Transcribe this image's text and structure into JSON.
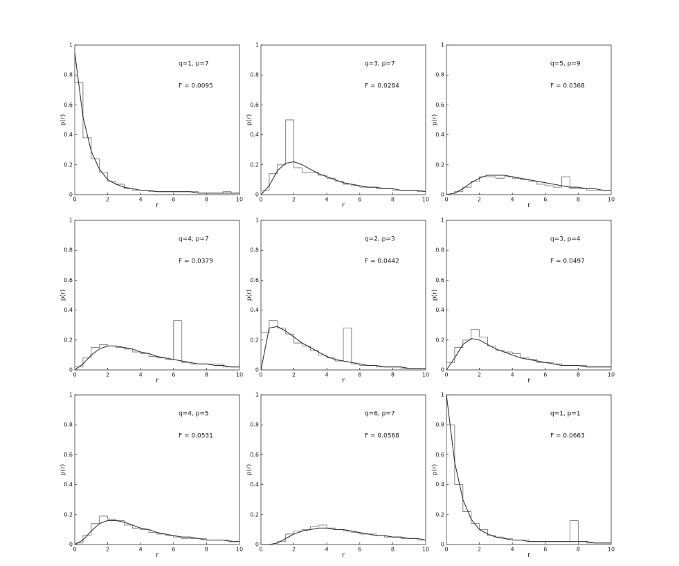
{
  "chart_data": [
    {
      "type": "histogram",
      "annotations": [
        "q=1, p=7",
        "F = 0.0095"
      ],
      "x_label": "r",
      "y_label": "p(r)",
      "xlim": [
        0,
        10
      ],
      "ylim": [
        0,
        1
      ],
      "xticks": [
        0,
        2,
        4,
        6,
        8,
        10
      ],
      "yticks": [
        0,
        0.2,
        0.4,
        0.6,
        0.8,
        1
      ],
      "bins": [
        0,
        0.5,
        1,
        1.5,
        2,
        2.5,
        3,
        3.5,
        4,
        4.5,
        5,
        5.5,
        6,
        6.5,
        7,
        7.5,
        8,
        8.5,
        9,
        9.5,
        10
      ],
      "values": [
        0.75,
        0.38,
        0.24,
        0.15,
        0.09,
        0.07,
        0.04,
        0.03,
        0.03,
        0.02,
        0.02,
        0.02,
        0.02,
        0.02,
        0.02,
        0.01,
        0.01,
        0.01,
        0.02,
        0.01
      ],
      "fit_x": [
        0,
        0.5,
        1,
        1.5,
        2,
        2.5,
        3,
        3.5,
        4,
        4.5,
        5,
        5.5,
        6,
        6.5,
        7,
        7.5,
        8,
        8.5,
        9,
        9.5,
        10
      ],
      "fit_values": [
        0.95,
        0.52,
        0.29,
        0.17,
        0.1,
        0.07,
        0.05,
        0.04,
        0.03,
        0.03,
        0.02,
        0.02,
        0.02,
        0.02,
        0.02,
        0.01,
        0.01,
        0.01,
        0.01,
        0.01,
        0.01
      ]
    },
    {
      "type": "histogram",
      "annotations": [
        "q=3, p=7",
        "F = 0.0284"
      ],
      "x_label": "r",
      "y_label": "p(r)",
      "xlim": [
        0,
        10
      ],
      "ylim": [
        0,
        1
      ],
      "xticks": [
        0,
        2,
        4,
        6,
        8,
        10
      ],
      "yticks": [
        0,
        0.2,
        0.4,
        0.6,
        0.8,
        1
      ],
      "bins": [
        0,
        0.5,
        1,
        1.5,
        2,
        2.5,
        3,
        3.5,
        4,
        4.5,
        5,
        5.5,
        6,
        6.5,
        7,
        7.5,
        8,
        8.5,
        9,
        9.5,
        10
      ],
      "values": [
        0.03,
        0.14,
        0.2,
        0.5,
        0.18,
        0.15,
        0.15,
        0.13,
        0.11,
        0.09,
        0.07,
        0.06,
        0.05,
        0.05,
        0.04,
        0.04,
        0.03,
        0.03,
        0.03,
        0.02
      ],
      "fit_x": [
        0,
        0.5,
        1,
        1.5,
        2,
        2.5,
        3,
        3.5,
        4,
        4.5,
        5,
        5.5,
        6,
        6.5,
        7,
        7.5,
        8,
        8.5,
        9,
        9.5,
        10
      ],
      "fit_values": [
        0,
        0.06,
        0.16,
        0.21,
        0.22,
        0.2,
        0.17,
        0.14,
        0.12,
        0.1,
        0.08,
        0.07,
        0.06,
        0.05,
        0.05,
        0.04,
        0.04,
        0.03,
        0.03,
        0.03,
        0.02
      ]
    },
    {
      "type": "histogram",
      "annotations": [
        "q=5, p=9",
        "F = 0.0368"
      ],
      "x_label": "r",
      "y_label": "p(r)",
      "xlim": [
        0,
        10
      ],
      "ylim": [
        0,
        1
      ],
      "xticks": [
        0,
        2,
        4,
        6,
        8,
        10
      ],
      "yticks": [
        0,
        0.2,
        0.4,
        0.6,
        0.8,
        1
      ],
      "bins": [
        0,
        0.5,
        1,
        1.5,
        2,
        2.5,
        3,
        3.5,
        4,
        4.5,
        5,
        5.5,
        6,
        6.5,
        7,
        7.5,
        8,
        8.5,
        9,
        9.5,
        10
      ],
      "values": [
        0,
        0.02,
        0.05,
        0.09,
        0.12,
        0.12,
        0.11,
        0.12,
        0.11,
        0.1,
        0.09,
        0.07,
        0.06,
        0.05,
        0.12,
        0.04,
        0.04,
        0.03,
        0.03,
        0.03
      ],
      "fit_x": [
        0,
        0.5,
        1,
        1.5,
        2,
        2.5,
        3,
        3.5,
        4,
        4.5,
        5,
        5.5,
        6,
        6.5,
        7,
        7.5,
        8,
        8.5,
        9,
        9.5,
        10
      ],
      "fit_values": [
        0,
        0.01,
        0.04,
        0.08,
        0.11,
        0.13,
        0.13,
        0.13,
        0.12,
        0.11,
        0.1,
        0.09,
        0.08,
        0.07,
        0.06,
        0.05,
        0.05,
        0.04,
        0.04,
        0.03,
        0.03
      ]
    },
    {
      "type": "histogram",
      "annotations": [
        "q=4, p=7",
        "F = 0.0379"
      ],
      "x_label": "r",
      "y_label": "p(r)",
      "xlim": [
        0,
        10
      ],
      "ylim": [
        0,
        1
      ],
      "xticks": [
        0,
        2,
        4,
        6,
        8,
        10
      ],
      "yticks": [
        0,
        0.2,
        0.4,
        0.6,
        0.8,
        1
      ],
      "bins": [
        0,
        0.5,
        1,
        1.5,
        2,
        2.5,
        3,
        3.5,
        4,
        4.5,
        5,
        5.5,
        6,
        6.5,
        7,
        7.5,
        8,
        8.5,
        9,
        9.5,
        10
      ],
      "values": [
        0.02,
        0.08,
        0.15,
        0.17,
        0.16,
        0.15,
        0.14,
        0.12,
        0.11,
        0.09,
        0.08,
        0.07,
        0.33,
        0.05,
        0.04,
        0.04,
        0.04,
        0.04,
        0.02,
        0.02
      ],
      "fit_x": [
        0,
        0.5,
        1,
        1.5,
        2,
        2.5,
        3,
        3.5,
        4,
        4.5,
        5,
        5.5,
        6,
        6.5,
        7,
        7.5,
        8,
        8.5,
        9,
        9.5,
        10
      ],
      "fit_values": [
        0,
        0.04,
        0.1,
        0.14,
        0.16,
        0.16,
        0.15,
        0.14,
        0.12,
        0.11,
        0.09,
        0.08,
        0.07,
        0.06,
        0.05,
        0.04,
        0.04,
        0.03,
        0.03,
        0.02,
        0.02
      ]
    },
    {
      "type": "histogram",
      "annotations": [
        "q=2, p=3",
        "F = 0.0442"
      ],
      "x_label": "r",
      "y_label": "p(r)",
      "xlim": [
        0,
        10
      ],
      "ylim": [
        0,
        1
      ],
      "xticks": [
        0,
        2,
        4,
        6,
        8,
        10
      ],
      "yticks": [
        0,
        0.2,
        0.4,
        0.6,
        0.8,
        1
      ],
      "bins": [
        0,
        0.5,
        1,
        1.5,
        2,
        2.5,
        3,
        3.5,
        4,
        4.5,
        5,
        5.5,
        6,
        6.5,
        7,
        7.5,
        8,
        8.5,
        9,
        9.5,
        10
      ],
      "values": [
        0.25,
        0.33,
        0.28,
        0.24,
        0.18,
        0.16,
        0.13,
        0.1,
        0.08,
        0.06,
        0.28,
        0.04,
        0.03,
        0.03,
        0.02,
        0.02,
        0.02,
        0.01,
        0.01,
        0.01
      ],
      "fit_x": [
        0,
        0.5,
        1,
        1.5,
        2,
        2.5,
        3,
        3.5,
        4,
        4.5,
        5,
        5.5,
        6,
        6.5,
        7,
        7.5,
        8,
        8.5,
        9,
        9.5,
        10
      ],
      "fit_values": [
        0,
        0.28,
        0.29,
        0.26,
        0.22,
        0.18,
        0.15,
        0.12,
        0.09,
        0.07,
        0.06,
        0.05,
        0.04,
        0.03,
        0.03,
        0.02,
        0.02,
        0.02,
        0.01,
        0.01,
        0.01
      ]
    },
    {
      "type": "histogram",
      "annotations": [
        "q=3, p=4",
        "F = 0.0497"
      ],
      "x_label": "r",
      "y_label": "p(r)",
      "xlim": [
        0,
        10
      ],
      "ylim": [
        0,
        1
      ],
      "xticks": [
        0,
        2,
        4,
        6,
        8,
        10
      ],
      "yticks": [
        0,
        0.2,
        0.4,
        0.6,
        0.8,
        1
      ],
      "bins": [
        0,
        0.5,
        1,
        1.5,
        2,
        2.5,
        3,
        3.5,
        4,
        4.5,
        5,
        5.5,
        6,
        6.5,
        7,
        7.5,
        8,
        8.5,
        9,
        9.5,
        10
      ],
      "values": [
        0.05,
        0.15,
        0.2,
        0.27,
        0.22,
        0.16,
        0.13,
        0.12,
        0.11,
        0.08,
        0.07,
        0.05,
        0.05,
        0.04,
        0.03,
        0.03,
        0.03,
        0.02,
        0.02,
        0.02
      ],
      "fit_x": [
        0,
        0.5,
        1,
        1.5,
        2,
        2.5,
        3,
        3.5,
        4,
        4.5,
        5,
        5.5,
        6,
        6.5,
        7,
        7.5,
        8,
        8.5,
        9,
        9.5,
        10
      ],
      "fit_values": [
        0,
        0.08,
        0.17,
        0.21,
        0.2,
        0.17,
        0.14,
        0.12,
        0.1,
        0.08,
        0.07,
        0.06,
        0.05,
        0.04,
        0.03,
        0.03,
        0.03,
        0.02,
        0.02,
        0.02,
        0.02
      ]
    },
    {
      "type": "histogram",
      "annotations": [
        "q=4, p=5",
        "F = 0.0531"
      ],
      "x_label": "r",
      "y_label": "p(r)",
      "xlim": [
        0,
        10
      ],
      "ylim": [
        0,
        1
      ],
      "xticks": [
        0,
        2,
        4,
        6,
        8,
        10
      ],
      "yticks": [
        0,
        0.2,
        0.4,
        0.6,
        0.8,
        1
      ],
      "bins": [
        0,
        0.5,
        1,
        1.5,
        2,
        2.5,
        3,
        3.5,
        4,
        4.5,
        5,
        5.5,
        6,
        6.5,
        7,
        7.5,
        8,
        8.5,
        9,
        9.5,
        10
      ],
      "values": [
        0.01,
        0.06,
        0.14,
        0.19,
        0.17,
        0.16,
        0.13,
        0.11,
        0.1,
        0.08,
        0.07,
        0.06,
        0.05,
        0.04,
        0.04,
        0.04,
        0.03,
        0.03,
        0.03,
        0.02
      ],
      "fit_x": [
        0,
        0.5,
        1,
        1.5,
        2,
        2.5,
        3,
        3.5,
        4,
        4.5,
        5,
        5.5,
        6,
        6.5,
        7,
        7.5,
        8,
        8.5,
        9,
        9.5,
        10
      ],
      "fit_values": [
        0,
        0.03,
        0.09,
        0.14,
        0.16,
        0.16,
        0.15,
        0.13,
        0.11,
        0.1,
        0.08,
        0.07,
        0.06,
        0.05,
        0.05,
        0.04,
        0.03,
        0.03,
        0.03,
        0.02,
        0.02
      ]
    },
    {
      "type": "histogram",
      "annotations": [
        "q=6, p=7",
        "F = 0.0568"
      ],
      "x_label": "r",
      "y_label": "p(r)",
      "xlim": [
        0,
        10
      ],
      "ylim": [
        0,
        1
      ],
      "xticks": [
        0,
        2,
        4,
        6,
        8,
        10
      ],
      "yticks": [
        0,
        0.2,
        0.4,
        0.6,
        0.8,
        1
      ],
      "bins": [
        0,
        0.5,
        1,
        1.5,
        2,
        2.5,
        3,
        3.5,
        4,
        4.5,
        5,
        5.5,
        6,
        6.5,
        7,
        7.5,
        8,
        8.5,
        9,
        9.5,
        10
      ],
      "values": [
        0,
        0,
        0.02,
        0.07,
        0.09,
        0.1,
        0.12,
        0.13,
        0.11,
        0.1,
        0.09,
        0.08,
        0.07,
        0.07,
        0.06,
        0.05,
        0.05,
        0.04,
        0.04,
        0.03
      ],
      "fit_x": [
        0,
        0.5,
        1,
        1.5,
        2,
        2.5,
        3,
        3.5,
        4,
        4.5,
        5,
        5.5,
        6,
        6.5,
        7,
        7.5,
        8,
        8.5,
        9,
        9.5,
        10
      ],
      "fit_values": [
        0,
        0,
        0.01,
        0.04,
        0.07,
        0.09,
        0.1,
        0.11,
        0.11,
        0.1,
        0.1,
        0.09,
        0.08,
        0.07,
        0.06,
        0.06,
        0.05,
        0.05,
        0.04,
        0.04,
        0.03
      ]
    },
    {
      "type": "histogram",
      "annotations": [
        "q=1, p=1",
        "F = 0.0663"
      ],
      "x_label": "r",
      "y_label": "p(r)",
      "xlim": [
        0,
        10
      ],
      "ylim": [
        0,
        1
      ],
      "xticks": [
        0,
        2,
        4,
        6,
        8,
        10
      ],
      "yticks": [
        0,
        0.2,
        0.4,
        0.6,
        0.8,
        1
      ],
      "bins": [
        0,
        0.5,
        1,
        1.5,
        2,
        2.5,
        3,
        3.5,
        4,
        4.5,
        5,
        5.5,
        6,
        6.5,
        7,
        7.5,
        8,
        8.5,
        9,
        9.5,
        10
      ],
      "values": [
        0.8,
        0.4,
        0.22,
        0.14,
        0.1,
        0.06,
        0.05,
        0.04,
        0.03,
        0.03,
        0.02,
        0.02,
        0.02,
        0.02,
        0.02,
        0.16,
        0.02,
        0.01,
        0.01,
        0.01
      ],
      "fit_x": [
        0,
        0.5,
        1,
        1.5,
        2,
        2.5,
        3,
        3.5,
        4,
        4.5,
        5,
        5.5,
        6,
        6.5,
        7,
        7.5,
        8,
        8.5,
        9,
        9.5,
        10
      ],
      "fit_values": [
        1,
        0.55,
        0.3,
        0.17,
        0.1,
        0.07,
        0.05,
        0.04,
        0.03,
        0.03,
        0.02,
        0.02,
        0.02,
        0.02,
        0.02,
        0.02,
        0.02,
        0.02,
        0.01,
        0.01,
        0.01
      ]
    }
  ]
}
